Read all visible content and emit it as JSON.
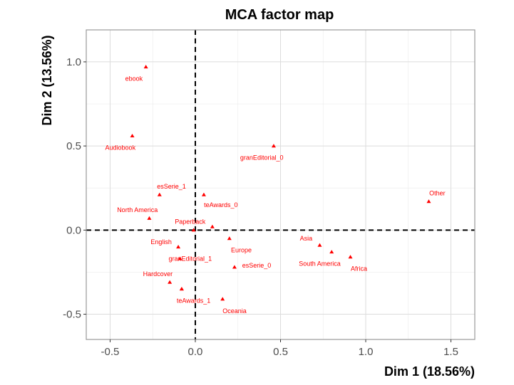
{
  "chart_data": {
    "type": "scatter",
    "title": "MCA factor map",
    "xlabel": "Dim 1 (18.56%)",
    "ylabel": "Dim 2 (13.56%)",
    "xlim": [
      -0.64,
      1.64
    ],
    "ylim": [
      -0.65,
      1.19
    ],
    "xticks": [
      -0.5,
      0.0,
      0.5,
      1.0,
      1.5
    ],
    "yticks": [
      -0.5,
      0.0,
      0.5,
      1.0
    ],
    "xtick_labels": [
      "-0.5",
      "0.0",
      "0.5",
      "1.0",
      "1.5"
    ],
    "ytick_labels": [
      "-0.5",
      "0.0",
      "0.5",
      "1.0"
    ],
    "grid": true,
    "reference_lines": {
      "x": 0,
      "y": 0,
      "style": "dashed"
    },
    "point_color": "#ff0000",
    "points": [
      {
        "label": "ebook",
        "x": -0.29,
        "y": 0.97,
        "lx": -0.36,
        "ly": 0.9
      },
      {
        "label": "Audiobook",
        "x": -0.37,
        "y": 0.56,
        "lx": -0.44,
        "ly": 0.49
      },
      {
        "label": "granEditorial_0",
        "x": 0.46,
        "y": 0.5,
        "lx": 0.39,
        "ly": 0.43
      },
      {
        "label": "esSerie_1",
        "x": -0.21,
        "y": 0.21,
        "lx": -0.14,
        "ly": 0.26
      },
      {
        "label": "teAwards_0",
        "x": 0.05,
        "y": 0.21,
        "lx": 0.15,
        "ly": 0.15
      },
      {
        "label": "Other",
        "x": 1.37,
        "y": 0.17,
        "lx": 1.42,
        "ly": 0.22
      },
      {
        "label": "North America",
        "x": -0.27,
        "y": 0.07,
        "lx": -0.34,
        "ly": 0.12
      },
      {
        "label": "Paperback",
        "x": -0.01,
        "y": 0.0,
        "lx": -0.03,
        "ly": 0.05
      },
      {
        "label": "",
        "x": 0.1,
        "y": 0.02,
        "lx": 0.1,
        "ly": 0.02
      },
      {
        "label": "English",
        "x": -0.1,
        "y": -0.1,
        "lx": -0.2,
        "ly": -0.07
      },
      {
        "label": "Europe",
        "x": 0.2,
        "y": -0.05,
        "lx": 0.27,
        "ly": -0.12
      },
      {
        "label": "Asia",
        "x": 0.73,
        "y": -0.09,
        "lx": 0.65,
        "ly": -0.05
      },
      {
        "label": "granEditorial_1",
        "x": -0.09,
        "y": -0.17,
        "lx": -0.03,
        "ly": -0.17
      },
      {
        "label": "South America",
        "x": 0.8,
        "y": -0.13,
        "lx": 0.73,
        "ly": -0.2
      },
      {
        "label": "Africa",
        "x": 0.91,
        "y": -0.16,
        "lx": 0.96,
        "ly": -0.23
      },
      {
        "label": "esSerie_0",
        "x": 0.23,
        "y": -0.22,
        "lx": 0.36,
        "ly": -0.21
      },
      {
        "label": "Hardcover",
        "x": -0.15,
        "y": -0.31,
        "lx": -0.22,
        "ly": -0.26
      },
      {
        "label": "",
        "x": -0.08,
        "y": -0.35,
        "lx": -0.08,
        "ly": -0.35
      },
      {
        "label": "teAwards_1",
        "x": -0.08,
        "y": -0.35,
        "lx": -0.01,
        "ly": -0.42
      },
      {
        "label": "Oceania",
        "x": 0.16,
        "y": -0.41,
        "lx": 0.23,
        "ly": -0.48
      }
    ]
  }
}
